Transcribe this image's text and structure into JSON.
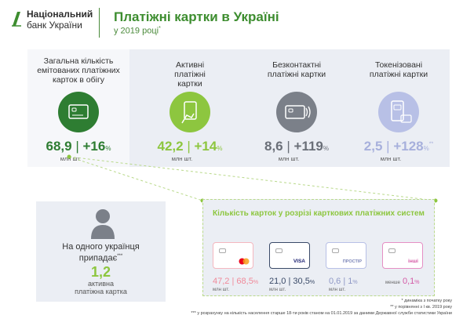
{
  "header": {
    "org_line1": "Національний",
    "org_line2": "банк України",
    "title": "Платіжні картки в Україні",
    "subtitle": "у 2019 році",
    "subtitle_mark": "*"
  },
  "metrics": [
    {
      "label": "Загальна кількість емітованих платіжних карток в обігу",
      "value": "68,9",
      "change": "+16",
      "change_unit": "%",
      "unit": "млн шт.",
      "icon": "card-icon",
      "color": "#2e7d32"
    },
    {
      "label": "Активні платіжні картки",
      "value": "42,2",
      "change": "+14",
      "change_unit": "%",
      "unit": "млн шт.",
      "icon": "hand-card-icon",
      "color": "#8dc63f"
    },
    {
      "label": "Безконтактні платіжні картки",
      "value": "8,6",
      "change": "+119",
      "change_unit": "%",
      "unit": "млн шт.",
      "icon": "contactless-card-icon",
      "color": "#7b8089"
    },
    {
      "label": "Токенізовані платіжні картки",
      "value": "2,5",
      "change": "+128",
      "change_unit": "%",
      "change_mark": "**",
      "unit": "млн шт.",
      "icon": "phone-pay-icon",
      "color": "#b8c0e6"
    }
  ],
  "per_capita": {
    "text_line1": "На одного українця",
    "text_line2": "припадає",
    "text_mark": "***",
    "value": "1,2",
    "unit_line1": "активна",
    "unit_line2": "платіжна картка"
  },
  "systems": {
    "title": "Кількість карток у розрізі карткових платіжних систем",
    "items": [
      {
        "name": "mastercard",
        "value": "47,2",
        "share": "68,5",
        "share_unit": "%",
        "unit": "млн шт.",
        "border": "#f4b7bf"
      },
      {
        "name": "VISA",
        "value": "21,0",
        "share": "30,5",
        "share_unit": "%",
        "unit": "млн шт.",
        "border": "#3a4a68"
      },
      {
        "name": "ПРОСТІР",
        "value": "0,6",
        "share": "1",
        "share_unit": "%",
        "unit": "млн шт.",
        "border": "#b8c0e6"
      },
      {
        "name": "інші",
        "value": "менше",
        "share": "0,1",
        "share_unit": "%",
        "unit": "",
        "border": "#e58fc4"
      }
    ]
  },
  "footnotes": {
    "f1": "* динаміка з початку року",
    "f2": "** у порівнянні з І кв. 2019 року",
    "f3": "*** у розрахунку на кількість населення старше 18-ти років станом на 01.01.2019 за даними Державної служби статистики України"
  }
}
